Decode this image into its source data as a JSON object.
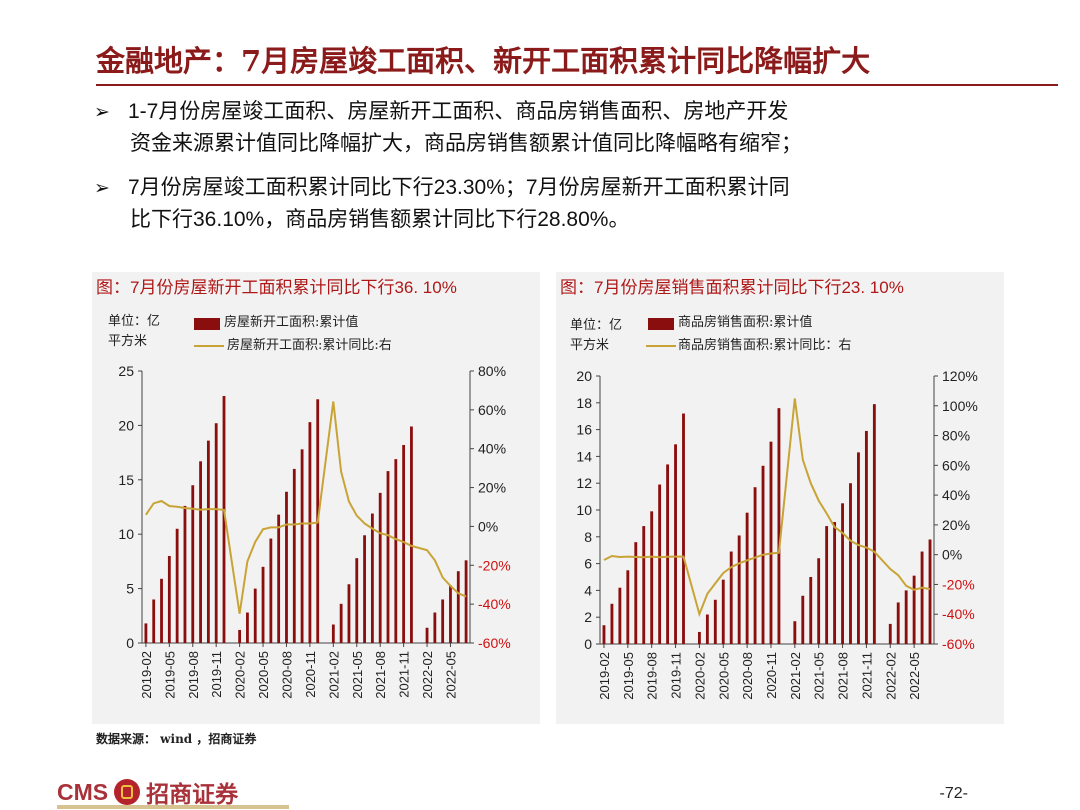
{
  "header": {
    "title": "金融地产：7月房屋竣工面积、新开工面积累计同比降幅扩大"
  },
  "bullets": [
    {
      "marker": "➢",
      "line1": "1-7月份房屋竣工面积、房屋新开工面积、商品房销售面积、房地产开发",
      "line2": "资金来源累计值同比降幅扩大，商品房销售额累计值同比降幅略有缩窄；"
    },
    {
      "marker": "➢",
      "line1": "7月份房屋竣工面积累计同比下行23.30%；7月份房屋新开工面积累计同",
      "line2": "比下行36.10%，商品房销售额累计同比下行28.80%。"
    }
  ],
  "chart_data": [
    {
      "type": "bar",
      "title": "图：7月份房屋新开工面积累计同比下行36. 10%",
      "unit_line1": "单位：亿",
      "unit_line2": "平方米",
      "legend": [
        "房屋新开工面积:累计值",
        "房屋新开工面积:累计同比:右"
      ],
      "x_tick_labels": [
        "2019-02",
        "2019-05",
        "2019-08",
        "2019-11",
        "2020-02",
        "2020-05",
        "2020-08",
        "2020-11",
        "2021-02",
        "2021-05",
        "2021-08",
        "2021-11",
        "2022-02",
        "2022-05"
      ],
      "y_left_ticks": [
        "0",
        "5",
        "10",
        "15",
        "20",
        "25"
      ],
      "y_right_ticks": [
        "-60%",
        "-40%",
        "-20%",
        "0%",
        "20%",
        "40%",
        "60%",
        "80%"
      ],
      "ylim_left": [
        0,
        25
      ],
      "ylim_right": [
        -60,
        80
      ],
      "bar_color": "#8b0e0e",
      "line_color": "#c8a436",
      "series": [
        {
          "name": "房屋新开工面积:累计值",
          "axis": "left",
          "values": [
            1.8,
            4.0,
            5.9,
            8.0,
            10.5,
            12.6,
            14.5,
            16.7,
            18.6,
            20.2,
            22.7,
            0,
            1.2,
            2.8,
            5.0,
            7.0,
            9.6,
            11.8,
            13.9,
            16.0,
            17.8,
            20.3,
            22.4,
            0,
            1.7,
            3.6,
            5.4,
            7.8,
            9.9,
            11.9,
            13.8,
            15.8,
            16.9,
            18.2,
            19.9,
            0,
            1.4,
            2.8,
            4.0,
            5.3,
            6.6,
            7.6
          ]
        },
        {
          "name": "房屋新开工面积:累计同比:右",
          "axis": "right",
          "values": [
            6.0,
            11.9,
            13.1,
            10.5,
            10.1,
            9.5,
            9.1,
            8.6,
            8.9,
            8.9,
            8.5,
            null,
            -44.9,
            -18.0,
            -8.0,
            -1.5,
            -0.5,
            -0.5,
            1.0,
            1.0,
            1.5,
            1.5,
            2.0,
            null,
            64.3,
            28.2,
            12.8,
            5.5,
            1.5,
            -1.1,
            -3.5,
            -4.5,
            -6.5,
            -8.0,
            -10.0,
            null,
            -12.2,
            -17.5,
            -26.3,
            -30.6,
            -34.4,
            -36.1
          ]
        }
      ]
    },
    {
      "type": "bar",
      "title": "图：7月份房屋销售面积累计同比下行23. 10%",
      "unit_line1": "单位：亿",
      "unit_line2": "平方米",
      "legend": [
        "商品房销售面积:累计值",
        "商品房销售面积:累计同比：右"
      ],
      "x_tick_labels": [
        "2019-02",
        "2019-05",
        "2019-08",
        "2019-11",
        "2020-02",
        "2020-05",
        "2020-08",
        "2020-11",
        "2021-02",
        "2021-05",
        "2021-08",
        "2021-11",
        "2022-02",
        "2022-05"
      ],
      "y_left_ticks": [
        "0",
        "2",
        "4",
        "6",
        "8",
        "10",
        "12",
        "14",
        "16",
        "18",
        "20"
      ],
      "y_right_ticks": [
        "-60%",
        "-40%",
        "-20%",
        "0%",
        "20%",
        "40%",
        "60%",
        "80%",
        "100%",
        "120%"
      ],
      "ylim_left": [
        0,
        20
      ],
      "ylim_right": [
        -60,
        120
      ],
      "bar_color": "#8b0e0e",
      "line_color": "#c8a436",
      "series": [
        {
          "name": "商品房销售面积:累计值",
          "axis": "left",
          "values": [
            1.4,
            3.0,
            4.2,
            5.5,
            7.6,
            8.8,
            9.9,
            11.9,
            13.4,
            14.9,
            17.2,
            0,
            0.9,
            2.2,
            3.3,
            4.8,
            6.9,
            8.1,
            9.8,
            11.7,
            13.3,
            15.1,
            17.6,
            0,
            1.7,
            3.6,
            5.0,
            6.4,
            8.8,
            9.1,
            10.5,
            12.0,
            14.3,
            15.9,
            17.9,
            0,
            1.5,
            3.1,
            4.0,
            5.1,
            6.9,
            7.8
          ]
        },
        {
          "name": "商品房销售面积:累计同比：右",
          "axis": "right",
          "values": [
            -3.6,
            -0.9,
            -1.6,
            -1.3,
            -1.6,
            -1.8,
            -1.3,
            -1.7,
            -1.4,
            -1.3,
            -1.3,
            null,
            -39.9,
            -26.3,
            -19.3,
            -12.3,
            -8.4,
            -5.8,
            -3.8,
            -2.0,
            0.0,
            0.8,
            1.3,
            null,
            104.9,
            63.8,
            48.1,
            36.3,
            27.7,
            18.5,
            14.6,
            9.4,
            6.4,
            4.8,
            1.9,
            null,
            -9.6,
            -13.8,
            -20.9,
            -23.6,
            -22.2,
            -23.1
          ]
        }
      ]
    }
  ],
  "footer": {
    "source": "数据来源： wind ，招商证券",
    "logo_en": "CMS",
    "logo_cn": "招商证券",
    "page": "-72-"
  }
}
